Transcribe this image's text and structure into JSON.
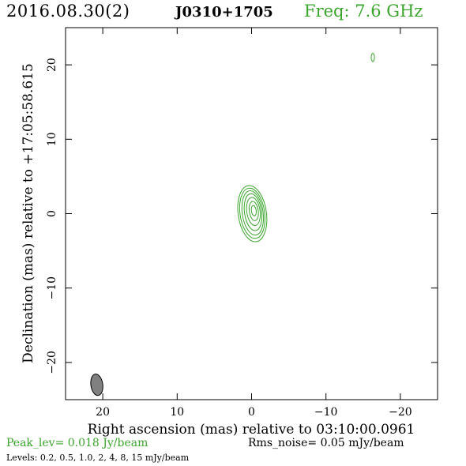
{
  "header": {
    "date": "2016.08.30(2)",
    "source": "J0310+1705",
    "frequency": "Freq: 7.6 GHz"
  },
  "footer": {
    "peak": "Peak_lev=  0.018 Jy/beam",
    "rms": "Rms_noise= 0.05 mJy/beam",
    "levels": "Levels: 0.2,  0.5,  1.0,    2,    4,    8,   15 mJy/beam"
  },
  "colors": {
    "contour": "#3aa52c",
    "beam_fill": "#808080"
  },
  "chart_data": {
    "type": "contour",
    "xlabel": "Right ascension (mas) relative to 03:10:00.0961",
    "ylabel": "Declination (mas) relative to +17:05:58.615",
    "xlim": [
      25,
      -25
    ],
    "ylim": [
      -25,
      25
    ],
    "xticks": [
      20,
      10,
      0,
      -10,
      -20
    ],
    "yticks": [
      20,
      10,
      0,
      -10,
      -20
    ],
    "xtick_labels": [
      "20",
      "10",
      "0",
      "−10",
      "−20"
    ],
    "ytick_labels": [
      "20",
      "10",
      "0",
      "−10",
      "−20"
    ],
    "contour_levels_mjy": [
      0.2,
      0.5,
      1.0,
      2,
      4,
      8,
      15
    ],
    "peak_jy_per_beam": 0.018,
    "rms_mjy_per_beam": 0.05,
    "contours": [
      {
        "x": -0.1,
        "y": 0.0,
        "semi_major": 3.8,
        "semi_minor": 1.9,
        "pa_deg": -8
      },
      {
        "x": -0.1,
        "y": 0.05,
        "semi_major": 3.4,
        "semi_minor": 1.65,
        "pa_deg": -8
      },
      {
        "x": -0.15,
        "y": 0.1,
        "semi_major": 3.0,
        "semi_minor": 1.4,
        "pa_deg": -8
      },
      {
        "x": -0.2,
        "y": 0.2,
        "semi_major": 2.5,
        "semi_minor": 1.15,
        "pa_deg": -8
      },
      {
        "x": -0.25,
        "y": 0.3,
        "semi_major": 1.9,
        "semi_minor": 0.9,
        "pa_deg": -8
      },
      {
        "x": -0.3,
        "y": 0.35,
        "semi_major": 1.3,
        "semi_minor": 0.6,
        "pa_deg": -8
      },
      {
        "x": -0.3,
        "y": 0.4,
        "semi_major": 0.7,
        "semi_minor": 0.32,
        "pa_deg": -8
      },
      {
        "x": -16.3,
        "y": 21.0,
        "semi_major": 0.55,
        "semi_minor": 0.22,
        "pa_deg": 0
      }
    ],
    "beam": {
      "x": 20.8,
      "y": -23.0,
      "semi_major": 1.45,
      "semi_minor": 0.8,
      "pa_deg": -8
    }
  }
}
